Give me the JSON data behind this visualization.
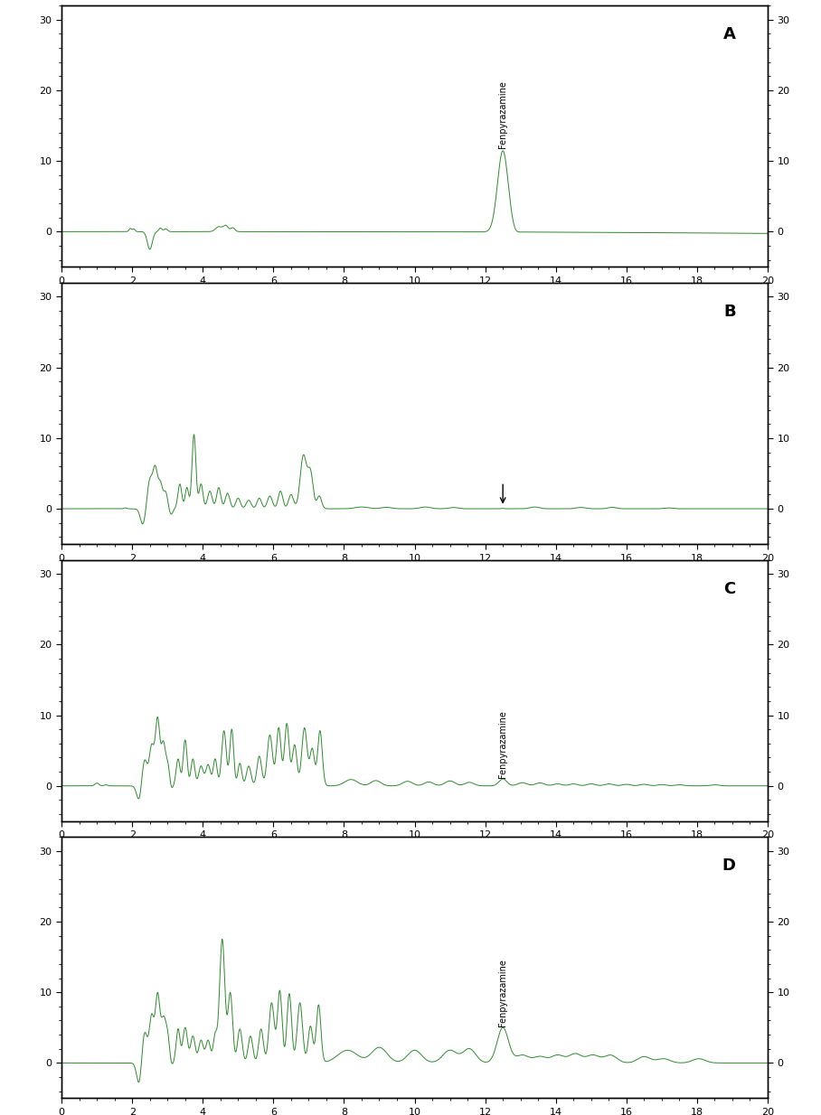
{
  "line_color": "#2d8a2d",
  "bg_color": "#ffffff",
  "xlim": [
    0,
    20
  ],
  "ylim": [
    -5,
    32
  ],
  "yticks": [
    0,
    10,
    20,
    30
  ],
  "xticks": [
    0,
    2,
    4,
    6,
    8,
    10,
    12,
    14,
    16,
    18,
    20
  ],
  "panels": [
    "A",
    "B",
    "C",
    "D"
  ],
  "label_A": "Fenpyrazamine",
  "label_C": "Fenpyrazamine",
  "label_D": "Fenpyrazamine"
}
